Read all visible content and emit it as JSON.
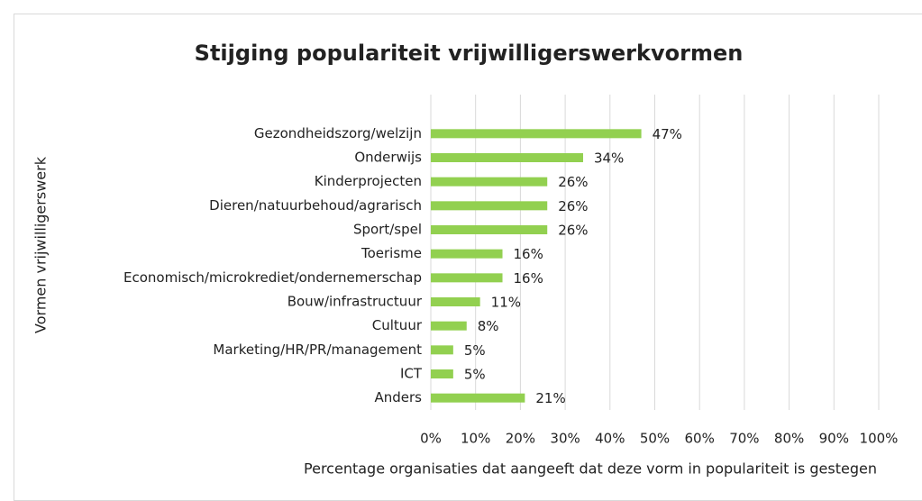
{
  "chart_data": {
    "type": "bar",
    "orientation": "horizontal",
    "title": "Stijging populariteit vrijwilligerswerkvormen",
    "x_label": "Percentage organisaties dat aangeeft dat deze vorm in populariteit is gestegen",
    "y_label": "Vormen vrijwilligerswerk",
    "categories": [
      "Gezondheidszorg/welzijn",
      "Onderwijs",
      "Kinderprojecten",
      "Dieren/natuurbehoud/agrarisch",
      "Sport/spel",
      "Toerisme",
      "Economisch/microkrediet/ondernemerschap",
      "Bouw/infrastructuur",
      "Cultuur",
      "Marketing/HR/PR/management",
      "ICT",
      "Anders"
    ],
    "values": [
      47,
      34,
      26,
      26,
      26,
      16,
      16,
      11,
      8,
      5,
      5,
      21
    ],
    "value_labels": [
      "47%",
      "34%",
      "26%",
      "26%",
      "26%",
      "16%",
      "16%",
      "11%",
      "8%",
      "5%",
      "5%",
      "21%"
    ],
    "color": "#92d050",
    "xlim": [
      0,
      100
    ],
    "xticks": [
      {
        "value": 0,
        "label": "0%"
      },
      {
        "value": 10,
        "label": "10%"
      },
      {
        "value": 20,
        "label": "20%"
      },
      {
        "value": 30,
        "label": "30%"
      },
      {
        "value": 40,
        "label": "40%"
      },
      {
        "value": 50,
        "label": "50%"
      },
      {
        "value": 60,
        "label": "60%"
      },
      {
        "value": 70,
        "label": "70%"
      },
      {
        "value": 80,
        "label": "80%"
      },
      {
        "value": 90,
        "label": "90%"
      },
      {
        "value": 100,
        "label": "100%"
      }
    ],
    "grid": true
  }
}
